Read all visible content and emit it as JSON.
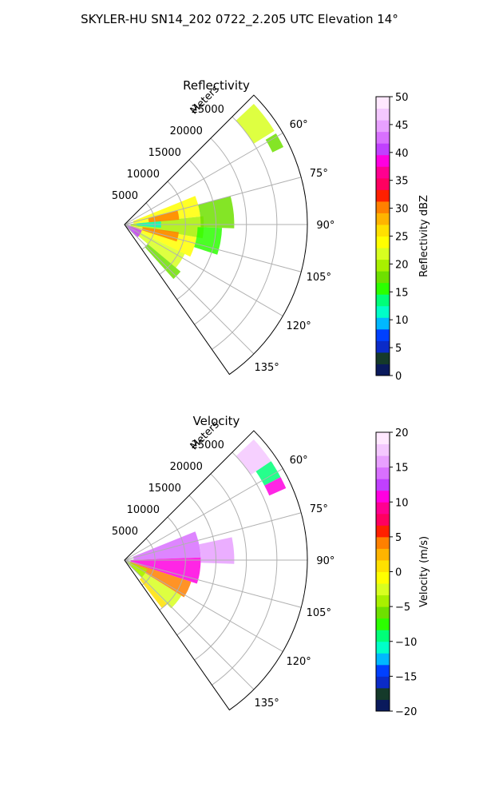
{
  "title": "SKYLER-HU  SN14_202  0722_2.205 UTC Elevation 14°",
  "chart_data": [
    {
      "type": "polar-sector",
      "panel": "reflectivity",
      "title": "Reflectivity",
      "radial_label": "Meters",
      "r_ticks": [
        5000,
        10000,
        15000,
        20000,
        25000
      ],
      "r_tick_labels": [
        "5000",
        "10000",
        "15000",
        "20000",
        "25000"
      ],
      "theta_ticks": [
        60,
        75,
        90,
        105,
        120,
        135
      ],
      "theta_tick_labels": [
        "60°",
        "75°",
        "90°",
        "105°",
        "120°",
        "135°"
      ],
      "theta_range_deg": [
        45,
        145
      ],
      "r_max_m": 30000,
      "colorbar": {
        "label": "Reflectivity dBZ",
        "range": [
          0,
          50
        ],
        "ticks": [
          0,
          5,
          10,
          15,
          20,
          25,
          30,
          35,
          40,
          45,
          50
        ],
        "tick_labels": [
          "0",
          "5",
          "10",
          "15",
          "20",
          "25",
          "30",
          "35",
          "40",
          "45",
          "50"
        ],
        "colors": [
          "#0a1a5c",
          "#153a2a",
          "#0b2bc8",
          "#0040ff",
          "#00b8ff",
          "#00ffc8",
          "#00ff78",
          "#2cff00",
          "#6ee000",
          "#a8f000",
          "#d8ff20",
          "#ffff00",
          "#ffe000",
          "#ffb400",
          "#ff8000",
          "#ff2000",
          "#ff0060",
          "#ff0090",
          "#ff00e0",
          "#c040ff",
          "#d870ff",
          "#e8a0ff",
          "#f4c8ff",
          "#ffe8ff"
        ]
      },
      "echoes": [
        {
          "az_start": 47,
          "az_end": 58,
          "r_start": 25000,
          "r_end": 29000,
          "value": 22
        },
        {
          "az_start": 59,
          "az_end": 64,
          "r_start": 27000,
          "r_end": 29000,
          "value": 18
        },
        {
          "az_start": 68,
          "az_end": 84,
          "r_start": 1500,
          "r_end": 12500,
          "value": 24
        },
        {
          "az_start": 84,
          "az_end": 100,
          "r_start": 1000,
          "r_end": 13000,
          "value": 19
        },
        {
          "az_start": 100,
          "az_end": 116,
          "r_start": 1000,
          "r_end": 12000,
          "value": 24
        },
        {
          "az_start": 116,
          "az_end": 130,
          "r_start": 2000,
          "r_end": 11000,
          "value": 21
        },
        {
          "az_start": 130,
          "az_end": 138,
          "r_start": 5000,
          "r_end": 12000,
          "value": 18
        },
        {
          "az_start": 75,
          "az_end": 92,
          "r_start": 12500,
          "r_end": 18000,
          "value": 17
        },
        {
          "az_start": 92,
          "az_end": 108,
          "r_start": 12000,
          "r_end": 16000,
          "value": 16
        },
        {
          "az_start": 98,
          "az_end": 108,
          "r_start": 3000,
          "r_end": 9000,
          "value": 30
        },
        {
          "az_start": 75,
          "az_end": 85,
          "r_start": 4000,
          "r_end": 9000,
          "value": 30
        },
        {
          "az_start": 108,
          "az_end": 135,
          "r_start": 0,
          "r_end": 3000,
          "value": 40
        },
        {
          "az_start": 85,
          "az_end": 95,
          "r_start": 2000,
          "r_end": 6000,
          "value": 12
        }
      ]
    },
    {
      "type": "polar-sector",
      "panel": "velocity",
      "title": "Velocity",
      "radial_label": "Meters",
      "r_ticks": [
        5000,
        10000,
        15000,
        20000,
        25000
      ],
      "r_tick_labels": [
        "5000",
        "10000",
        "15000",
        "20000",
        "25000"
      ],
      "theta_ticks": [
        60,
        75,
        90,
        105,
        120,
        135
      ],
      "theta_tick_labels": [
        "60°",
        "75°",
        "90°",
        "105°",
        "120°",
        "135°"
      ],
      "theta_range_deg": [
        45,
        145
      ],
      "r_max_m": 30000,
      "colorbar": {
        "label": "Velocity (m/s)",
        "range": [
          -20,
          20
        ],
        "ticks": [
          -20,
          -15,
          -10,
          -5,
          0,
          5,
          10,
          15,
          20
        ],
        "tick_labels": [
          "−20",
          "−15",
          "−10",
          "−5",
          "0",
          "5",
          "10",
          "15",
          "20"
        ],
        "colors": [
          "#0a1a5c",
          "#153a2a",
          "#0b2bc8",
          "#0040ff",
          "#00b8ff",
          "#00ffc8",
          "#00ff78",
          "#2cff00",
          "#6ee000",
          "#a8f000",
          "#d8ff20",
          "#ffff00",
          "#ffe000",
          "#ffb400",
          "#ff8000",
          "#ff2000",
          "#ff0060",
          "#ff0090",
          "#ff00e0",
          "#c040ff",
          "#d870ff",
          "#e8a0ff",
          "#f4c8ff",
          "#ffe8ff"
        ]
      },
      "echoes": [
        {
          "az_start": 47,
          "az_end": 56,
          "r_start": 25000,
          "r_end": 29000,
          "value": 17
        },
        {
          "az_start": 56,
          "az_end": 62,
          "r_start": 26000,
          "r_end": 29000,
          "value": -10
        },
        {
          "az_start": 62,
          "az_end": 66,
          "r_start": 26000,
          "r_end": 29000,
          "value": 10
        },
        {
          "az_start": 68,
          "az_end": 88,
          "r_start": 1500,
          "r_end": 12500,
          "value": 14
        },
        {
          "az_start": 78,
          "az_end": 92,
          "r_start": 12500,
          "r_end": 18000,
          "value": 15
        },
        {
          "az_start": 88,
          "az_end": 108,
          "r_start": 1000,
          "r_end": 12500,
          "value": 10
        },
        {
          "az_start": 108,
          "az_end": 122,
          "r_start": 1000,
          "r_end": 11500,
          "value": 4
        },
        {
          "az_start": 122,
          "az_end": 136,
          "r_start": 1500,
          "r_end": 11000,
          "value": -3
        },
        {
          "az_start": 136,
          "az_end": 142,
          "r_start": 4000,
          "r_end": 10000,
          "value": 0
        },
        {
          "az_start": 112,
          "az_end": 135,
          "r_start": 0,
          "r_end": 4000,
          "value": -4
        }
      ]
    }
  ]
}
